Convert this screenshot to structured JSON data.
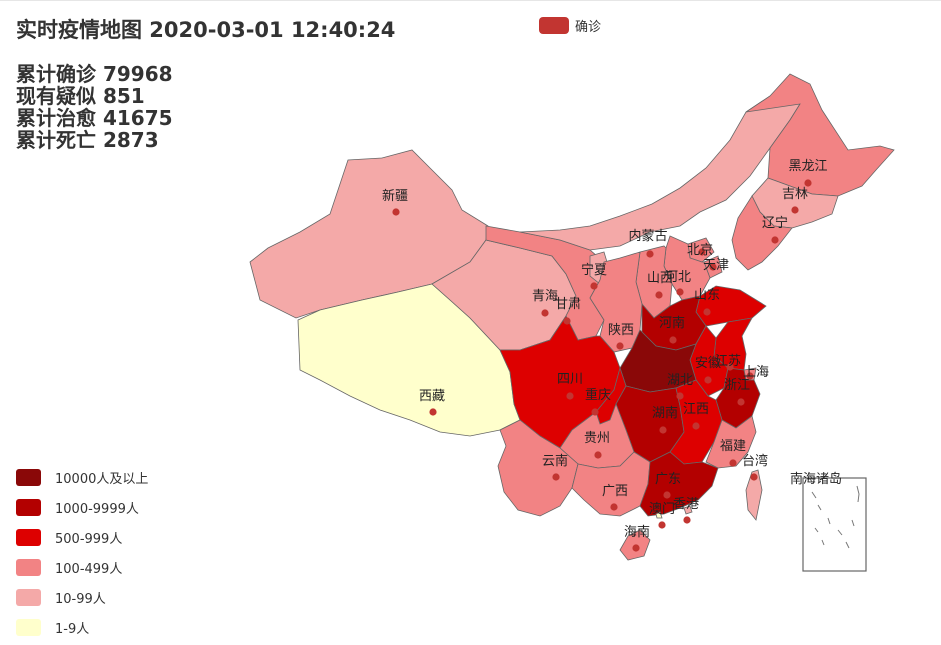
{
  "title": "实时疫情地图 2020-03-01 12:40:24",
  "stats": {
    "confirmed": "累计确诊 79968",
    "suspected": "现有疑似 851",
    "recovered": "累计治愈 41675",
    "dead": "累计死亡 2873"
  },
  "top_legend": {
    "label": "确诊",
    "color": "#c23531"
  },
  "range_legend": [
    {
      "label": "10000人及以上",
      "color": "#8a0808"
    },
    {
      "label": "1000-9999人",
      "color": "#b30000"
    },
    {
      "label": "500-999人",
      "color": "#dd0000"
    },
    {
      "label": "100-499人",
      "color": "#f28384"
    },
    {
      "label": "10-99人",
      "color": "#f4a9a8"
    },
    {
      "label": "1-9人",
      "color": "#ffffcc"
    }
  ],
  "provinces": [
    {
      "name": "新疆",
      "bucket": "10-99人"
    },
    {
      "name": "西藏",
      "bucket": "1-9人"
    },
    {
      "name": "青海",
      "bucket": "10-99人"
    },
    {
      "name": "甘肃",
      "bucket": "100-499人"
    },
    {
      "name": "内蒙古",
      "bucket": "10-99人"
    },
    {
      "name": "黑龙江",
      "bucket": "100-499人"
    },
    {
      "name": "吉林",
      "bucket": "10-99人"
    },
    {
      "name": "辽宁",
      "bucket": "100-499人"
    },
    {
      "name": "北京",
      "bucket": "100-499人"
    },
    {
      "name": "天津",
      "bucket": "100-499人"
    },
    {
      "name": "河北",
      "bucket": "100-499人"
    },
    {
      "name": "山西",
      "bucket": "100-499人"
    },
    {
      "name": "宁夏",
      "bucket": "10-99人"
    },
    {
      "name": "陕西",
      "bucket": "100-499人"
    },
    {
      "name": "山东",
      "bucket": "500-999人"
    },
    {
      "name": "河南",
      "bucket": "1000-9999人"
    },
    {
      "name": "江苏",
      "bucket": "500-999人"
    },
    {
      "name": "安徽",
      "bucket": "500-999人"
    },
    {
      "name": "上海",
      "bucket": "100-499人"
    },
    {
      "name": "浙江",
      "bucket": "1000-9999人"
    },
    {
      "name": "湖北",
      "bucket": "10000人及以上"
    },
    {
      "name": "四川",
      "bucket": "500-999人"
    },
    {
      "name": "重庆",
      "bucket": "500-999人"
    },
    {
      "name": "湖南",
      "bucket": "1000-9999人"
    },
    {
      "name": "江西",
      "bucket": "500-999人"
    },
    {
      "name": "贵州",
      "bucket": "100-499人"
    },
    {
      "name": "云南",
      "bucket": "100-499人"
    },
    {
      "name": "福建",
      "bucket": "100-499人"
    },
    {
      "name": "台湾",
      "bucket": "10-99人"
    },
    {
      "name": "广西",
      "bucket": "100-499人"
    },
    {
      "name": "广东",
      "bucket": "1000-9999人"
    },
    {
      "name": "香港",
      "bucket": "10-99人"
    },
    {
      "name": "澳门",
      "bucket": "1-9人"
    },
    {
      "name": "海南",
      "bucket": "100-499人"
    },
    {
      "name": "南海诸岛",
      "bucket": ""
    }
  ]
}
